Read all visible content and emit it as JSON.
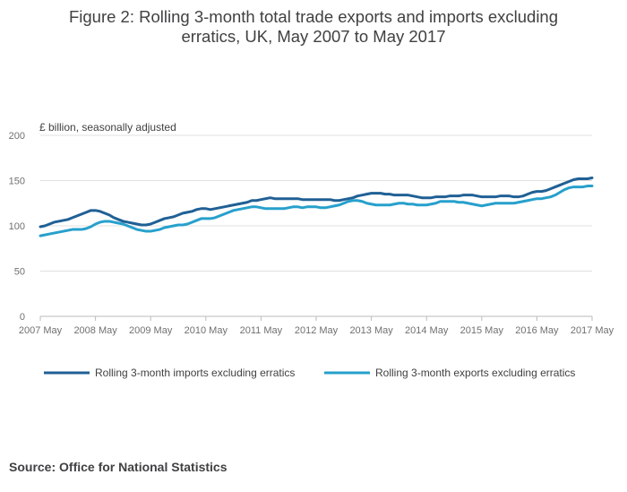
{
  "title_lines": [
    "Figure 2: Rolling 3-month total trade exports and imports excluding",
    "erratics, UK, May 2007 to May 2017"
  ],
  "source": "Source: Office for National Statistics",
  "colors": {
    "imports": "#206095",
    "exports": "#27a0cc",
    "grid": "#e0e0e0",
    "axis": "#bbbbbb"
  },
  "chart_data": {
    "type": "line",
    "title": "Figure 2: Rolling 3-month total trade exports and imports excluding erratics, UK, May 2007 to May 2017",
    "ylabel": "£ billion, seasonally adjusted",
    "xlabel": "",
    "ylim": [
      0,
      200
    ],
    "yticks": [
      0,
      50,
      100,
      150,
      200
    ],
    "xlim": [
      0,
      120
    ],
    "xticks": [
      {
        "label": "2007 May",
        "x": 0
      },
      {
        "label": "2008 May",
        "x": 12
      },
      {
        "label": "2009 May",
        "x": 24
      },
      {
        "label": "2010 May",
        "x": 36
      },
      {
        "label": "2011 May",
        "x": 48
      },
      {
        "label": "2012 May",
        "x": 60
      },
      {
        "label": "2013 May",
        "x": 72
      },
      {
        "label": "2014 May",
        "x": 84
      },
      {
        "label": "2015 May",
        "x": 96
      },
      {
        "label": "2016 May",
        "x": 108
      },
      {
        "label": "2017 May",
        "x": 120
      }
    ],
    "series": [
      {
        "name": "Rolling 3-month imports excluding erratics",
        "color": "#206095",
        "points": [
          [
            0,
            99
          ],
          [
            1,
            100
          ],
          [
            2,
            102
          ],
          [
            3,
            104
          ],
          [
            4,
            105
          ],
          [
            5,
            106
          ],
          [
            6,
            107
          ],
          [
            7,
            109
          ],
          [
            8,
            111
          ],
          [
            9,
            113
          ],
          [
            10,
            115
          ],
          [
            11,
            117
          ],
          [
            12,
            117
          ],
          [
            13,
            116
          ],
          [
            14,
            114
          ],
          [
            15,
            112
          ],
          [
            16,
            109
          ],
          [
            17,
            107
          ],
          [
            18,
            105
          ],
          [
            19,
            104
          ],
          [
            20,
            103
          ],
          [
            21,
            102
          ],
          [
            22,
            101
          ],
          [
            23,
            101
          ],
          [
            24,
            102
          ],
          [
            25,
            104
          ],
          [
            26,
            106
          ],
          [
            27,
            108
          ],
          [
            28,
            109
          ],
          [
            29,
            110
          ],
          [
            30,
            112
          ],
          [
            31,
            114
          ],
          [
            32,
            115
          ],
          [
            33,
            116
          ],
          [
            34,
            118
          ],
          [
            35,
            119
          ],
          [
            36,
            119
          ],
          [
            37,
            118
          ],
          [
            38,
            119
          ],
          [
            39,
            120
          ],
          [
            40,
            121
          ],
          [
            41,
            122
          ],
          [
            42,
            123
          ],
          [
            43,
            124
          ],
          [
            44,
            125
          ],
          [
            45,
            126
          ],
          [
            46,
            128
          ],
          [
            47,
            128
          ],
          [
            48,
            129
          ],
          [
            49,
            130
          ],
          [
            50,
            131
          ],
          [
            51,
            130
          ],
          [
            52,
            130
          ],
          [
            53,
            130
          ],
          [
            54,
            130
          ],
          [
            55,
            130
          ],
          [
            56,
            130
          ],
          [
            57,
            129
          ],
          [
            58,
            129
          ],
          [
            59,
            129
          ],
          [
            60,
            129
          ],
          [
            61,
            129
          ],
          [
            62,
            129
          ],
          [
            63,
            129
          ],
          [
            64,
            128
          ],
          [
            65,
            128
          ],
          [
            66,
            129
          ],
          [
            67,
            130
          ],
          [
            68,
            131
          ],
          [
            69,
            133
          ],
          [
            70,
            134
          ],
          [
            71,
            135
          ],
          [
            72,
            136
          ],
          [
            73,
            136
          ],
          [
            74,
            136
          ],
          [
            75,
            135
          ],
          [
            76,
            135
          ],
          [
            77,
            134
          ],
          [
            78,
            134
          ],
          [
            79,
            134
          ],
          [
            80,
            134
          ],
          [
            81,
            133
          ],
          [
            82,
            132
          ],
          [
            83,
            131
          ],
          [
            84,
            131
          ],
          [
            85,
            131
          ],
          [
            86,
            132
          ],
          [
            87,
            132
          ],
          [
            88,
            132
          ],
          [
            89,
            133
          ],
          [
            90,
            133
          ],
          [
            91,
            133
          ],
          [
            92,
            134
          ],
          [
            93,
            134
          ],
          [
            94,
            134
          ],
          [
            95,
            133
          ],
          [
            96,
            132
          ],
          [
            97,
            132
          ],
          [
            98,
            132
          ],
          [
            99,
            132
          ],
          [
            100,
            133
          ],
          [
            101,
            133
          ],
          [
            102,
            133
          ],
          [
            103,
            132
          ],
          [
            104,
            132
          ],
          [
            105,
            133
          ],
          [
            106,
            135
          ],
          [
            107,
            137
          ],
          [
            108,
            138
          ],
          [
            109,
            138
          ],
          [
            110,
            139
          ],
          [
            111,
            141
          ],
          [
            112,
            143
          ],
          [
            113,
            145
          ],
          [
            114,
            147
          ],
          [
            115,
            149
          ],
          [
            116,
            151
          ],
          [
            117,
            152
          ],
          [
            118,
            152
          ],
          [
            119,
            152
          ],
          [
            120,
            153
          ]
        ]
      },
      {
        "name": "Rolling 3-month exports excluding erratics",
        "color": "#27a0cc",
        "points": [
          [
            0,
            89
          ],
          [
            1,
            90
          ],
          [
            2,
            91
          ],
          [
            3,
            92
          ],
          [
            4,
            93
          ],
          [
            5,
            94
          ],
          [
            6,
            95
          ],
          [
            7,
            96
          ],
          [
            8,
            96
          ],
          [
            9,
            96
          ],
          [
            10,
            97
          ],
          [
            11,
            99
          ],
          [
            12,
            102
          ],
          [
            13,
            104
          ],
          [
            14,
            105
          ],
          [
            15,
            105
          ],
          [
            16,
            104
          ],
          [
            17,
            103
          ],
          [
            18,
            102
          ],
          [
            19,
            100
          ],
          [
            20,
            98
          ],
          [
            21,
            96
          ],
          [
            22,
            95
          ],
          [
            23,
            94
          ],
          [
            24,
            94
          ],
          [
            25,
            95
          ],
          [
            26,
            96
          ],
          [
            27,
            98
          ],
          [
            28,
            99
          ],
          [
            29,
            100
          ],
          [
            30,
            101
          ],
          [
            31,
            101
          ],
          [
            32,
            102
          ],
          [
            33,
            104
          ],
          [
            34,
            106
          ],
          [
            35,
            108
          ],
          [
            36,
            108
          ],
          [
            37,
            108
          ],
          [
            38,
            109
          ],
          [
            39,
            111
          ],
          [
            40,
            113
          ],
          [
            41,
            115
          ],
          [
            42,
            117
          ],
          [
            43,
            118
          ],
          [
            44,
            119
          ],
          [
            45,
            120
          ],
          [
            46,
            121
          ],
          [
            47,
            121
          ],
          [
            48,
            120
          ],
          [
            49,
            119
          ],
          [
            50,
            119
          ],
          [
            51,
            119
          ],
          [
            52,
            119
          ],
          [
            53,
            119
          ],
          [
            54,
            120
          ],
          [
            55,
            121
          ],
          [
            56,
            121
          ],
          [
            57,
            120
          ],
          [
            58,
            121
          ],
          [
            59,
            121
          ],
          [
            60,
            121
          ],
          [
            61,
            120
          ],
          [
            62,
            120
          ],
          [
            63,
            121
          ],
          [
            64,
            122
          ],
          [
            65,
            123
          ],
          [
            66,
            125
          ],
          [
            67,
            127
          ],
          [
            68,
            128
          ],
          [
            69,
            128
          ],
          [
            70,
            127
          ],
          [
            71,
            125
          ],
          [
            72,
            124
          ],
          [
            73,
            123
          ],
          [
            74,
            123
          ],
          [
            75,
            123
          ],
          [
            76,
            123
          ],
          [
            77,
            124
          ],
          [
            78,
            125
          ],
          [
            79,
            125
          ],
          [
            80,
            124
          ],
          [
            81,
            124
          ],
          [
            82,
            123
          ],
          [
            83,
            123
          ],
          [
            84,
            123
          ],
          [
            85,
            124
          ],
          [
            86,
            125
          ],
          [
            87,
            127
          ],
          [
            88,
            127
          ],
          [
            89,
            127
          ],
          [
            90,
            127
          ],
          [
            91,
            126
          ],
          [
            92,
            126
          ],
          [
            93,
            125
          ],
          [
            94,
            124
          ],
          [
            95,
            123
          ],
          [
            96,
            122
          ],
          [
            97,
            123
          ],
          [
            98,
            124
          ],
          [
            99,
            125
          ],
          [
            100,
            125
          ],
          [
            101,
            125
          ],
          [
            102,
            125
          ],
          [
            103,
            125
          ],
          [
            104,
            126
          ],
          [
            105,
            127
          ],
          [
            106,
            128
          ],
          [
            107,
            129
          ],
          [
            108,
            130
          ],
          [
            109,
            130
          ],
          [
            110,
            131
          ],
          [
            111,
            132
          ],
          [
            112,
            134
          ],
          [
            113,
            137
          ],
          [
            114,
            140
          ],
          [
            115,
            142
          ],
          [
            116,
            143
          ],
          [
            117,
            143
          ],
          [
            118,
            143
          ],
          [
            119,
            144
          ],
          [
            120,
            144
          ]
        ]
      }
    ]
  }
}
